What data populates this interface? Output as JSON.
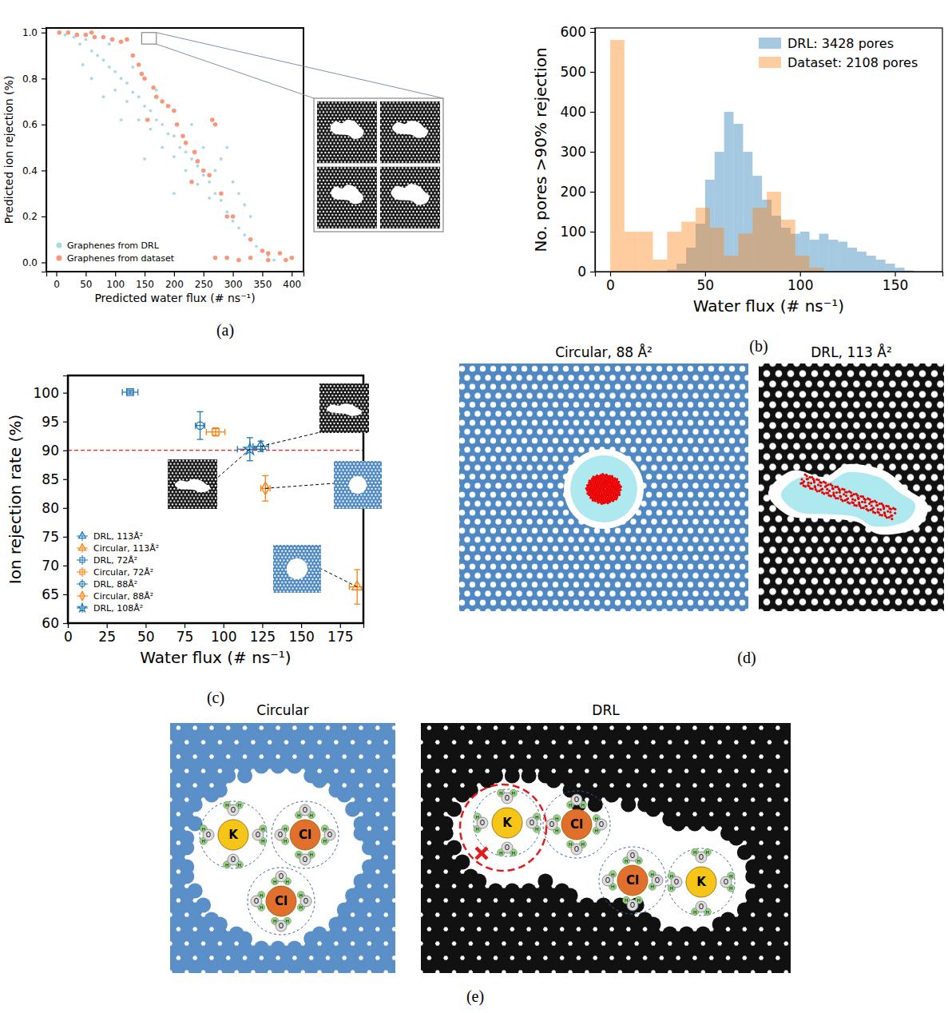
{
  "chart_data": [
    {
      "type": "scatter",
      "panel_label": "(a)",
      "x_label": "Predicted water flux (# ns⁻¹)",
      "y_label": "Predicted ion rejection (%)",
      "xlim": [
        -17,
        420
      ],
      "ylim": [
        -0.04,
        1.02
      ],
      "xticks": [
        0,
        50,
        100,
        150,
        200,
        250,
        300,
        350,
        400
      ],
      "yticks": [
        {
          "value": 0,
          "label": "0.0"
        },
        {
          "value": 0.2,
          "label": "0.2"
        },
        {
          "value": 0.4,
          "label": "0.4"
        },
        {
          "value": 0.6,
          "label": "0.6"
        },
        {
          "value": 0.8,
          "label": "0.8"
        },
        {
          "value": 1,
          "label": "1.0"
        }
      ],
      "legend": "lower left",
      "inset_region": {
        "x": [
          145,
          170
        ],
        "y": [
          0.95,
          1.0
        ]
      },
      "series": [
        {
          "name": "Graphenes from DRL",
          "color": "#a9d9e6",
          "marker": "circle",
          "x": [
            5,
            15,
            30,
            40,
            50,
            60,
            70,
            80,
            90,
            100,
            100,
            110,
            120,
            120,
            130,
            140,
            140,
            150,
            160,
            160,
            170,
            180,
            180,
            190,
            200,
            200,
            210,
            220,
            220,
            230,
            240,
            240,
            250,
            260,
            260,
            270,
            280,
            280,
            290,
            300,
            300,
            310,
            320,
            320,
            330,
            340,
            350,
            360,
            370,
            60,
            80,
            110,
            130,
            170,
            200,
            230,
            250,
            270,
            290,
            310,
            330,
            150,
            90,
            45
          ],
          "values": [
            1.0,
            0.99,
            0.98,
            0.95,
            0.97,
            0.92,
            0.9,
            0.88,
            0.85,
            0.83,
            0.75,
            0.8,
            0.78,
            0.7,
            0.74,
            0.72,
            0.62,
            0.68,
            0.66,
            0.58,
            0.62,
            0.6,
            0.5,
            0.56,
            0.55,
            0.46,
            0.5,
            0.48,
            0.4,
            0.45,
            0.42,
            0.34,
            0.38,
            0.35,
            0.28,
            0.3,
            0.27,
            0.45,
            0.22,
            0.18,
            0.35,
            0.15,
            0.12,
            0.25,
            0.1,
            0.07,
            0.05,
            0.03,
            0.01,
            0.8,
            0.72,
            0.62,
            0.85,
            0.75,
            0.3,
            0.6,
            0.5,
            0.4,
            0.5,
            0.3,
            0.2,
            0.45,
            0.95,
            0.86
          ]
        },
        {
          "name": "Graphenes from dataset",
          "color": "#f9977a",
          "marker": "circle",
          "x": [
            5,
            20,
            35,
            50,
            65,
            80,
            95,
            110,
            120,
            60,
            130,
            140,
            145,
            150,
            165,
            170,
            180,
            190,
            200,
            205,
            215,
            220,
            235,
            240,
            250,
            260,
            265,
            270,
            280,
            290,
            300,
            330,
            350,
            360,
            380,
            270,
            290,
            310,
            330,
            360,
            390,
            400,
            155,
            230
          ],
          "values": [
            1.0,
            1.0,
            0.99,
            0.99,
            0.98,
            0.98,
            0.97,
            0.96,
            0.97,
            1.0,
            0.9,
            0.86,
            0.82,
            0.8,
            0.76,
            0.72,
            0.7,
            0.68,
            0.66,
            0.6,
            0.55,
            0.52,
            0.48,
            0.44,
            0.4,
            0.38,
            0.62,
            0.6,
            0.3,
            0.2,
            0.2,
            0.1,
            0.05,
            0.04,
            0.04,
            0.02,
            0.02,
            0.01,
            0.02,
            0.01,
            0.01,
            0.02,
            0.62,
            0.35
          ]
        }
      ]
    },
    {
      "type": "histogram",
      "panel_label": "(b)",
      "x_label": "Water flux (# ns⁻¹)",
      "y_label": "No. pores >90% rejection",
      "xlim": [
        -8,
        175
      ],
      "ylim": [
        0,
        610
      ],
      "xticks": [
        0,
        50,
        100,
        150
      ],
      "yticks": [
        0,
        100,
        200,
        300,
        400,
        500,
        600
      ],
      "legend": "upper right",
      "series": [
        {
          "name": "DRL: 3428 pores",
          "color": "#1f77b4",
          "bins": [
            30,
            35,
            40,
            45,
            50,
            55,
            60,
            65,
            70,
            75,
            80,
            85,
            90,
            95,
            100,
            105,
            110,
            115,
            120,
            125,
            130,
            135,
            140,
            145,
            150,
            155,
            160
          ],
          "values": [
            5,
            20,
            60,
            120,
            230,
            300,
            400,
            370,
            300,
            240,
            180,
            140,
            110,
            95,
            100,
            80,
            95,
            80,
            75,
            60,
            50,
            40,
            30,
            20,
            10,
            3
          ]
        },
        {
          "name": "Dataset: 2108 pores",
          "color": "#ff7f0e",
          "bins": [
            0,
            7.5,
            15,
            22.5,
            30,
            37.5,
            45,
            52.5,
            60,
            67.5,
            75,
            82.5,
            90,
            97.5,
            105,
            112.5
          ],
          "values": [
            580,
            100,
            100,
            30,
            100,
            125,
            160,
            110,
            40,
            95,
            160,
            200,
            130,
            40,
            10
          ]
        }
      ]
    },
    {
      "type": "scatter",
      "panel_label": "(c)",
      "x_label": "Water flux (# ns⁻¹)",
      "y_label": "Ion rejection rate (%)",
      "xlim": [
        0,
        190
      ],
      "ylim": [
        60,
        103
      ],
      "xticks": [
        0,
        25,
        50,
        75,
        100,
        125,
        150,
        175
      ],
      "yticks": [
        60,
        65,
        70,
        75,
        80,
        85,
        90,
        95,
        100
      ],
      "legend": "lower left",
      "reference_y": 90,
      "series": [
        {
          "name": "DRL, 113Å²",
          "color": "#1f77b4",
          "marker": "triangle",
          "x": [
            124
          ],
          "values": [
            90.7
          ],
          "x_error": [
            5
          ],
          "y_error": [
            0.9
          ]
        },
        {
          "name": "Circular, 113Å²",
          "color": "#ff7f0e",
          "marker": "triangle",
          "x": [
            186
          ],
          "values": [
            66.3
          ],
          "x_error": [
            5
          ],
          "y_error": [
            3
          ]
        },
        {
          "name": "DRL, 72Å²",
          "color": "#1f77b4",
          "marker": "square",
          "x": [
            40
          ],
          "values": [
            100.1
          ],
          "x_error": [
            5
          ],
          "y_error": [
            0.3
          ]
        },
        {
          "name": "Circular, 72Å²",
          "color": "#ff7f0e",
          "marker": "square",
          "x": [
            95
          ],
          "values": [
            93.2
          ],
          "x_error": [
            6
          ],
          "y_error": [
            0.7
          ]
        },
        {
          "name": "DRL, 88Å²",
          "color": "#1f77b4",
          "marker": "circle",
          "x": [
            85
          ],
          "values": [
            94.3
          ],
          "x_error": [
            3
          ],
          "y_error": [
            2.4
          ]
        },
        {
          "name": "Circular, 88Å²",
          "color": "#ff7f0e",
          "marker": "diamond",
          "x": [
            127
          ],
          "values": [
            83.4
          ],
          "x_error": [
            3
          ],
          "y_error": [
            2.2
          ]
        },
        {
          "name": "DRL, 108Å²",
          "color": "#1f77b4",
          "marker": "star",
          "x": [
            117
          ],
          "values": [
            90.2
          ],
          "x_error": [
            8
          ],
          "y_error": [
            2.0
          ]
        }
      ]
    }
  ],
  "panels": {
    "d": {
      "panel_label": "(d)",
      "titles": [
        "Circular, 88 Å²",
        "DRL, 113 Å²"
      ]
    },
    "e": {
      "panel_label": "(e)",
      "titles": [
        "Circular",
        "DRL"
      ],
      "ions": {
        "potassium": "K",
        "chloride": "Cl"
      },
      "water_atoms": {
        "oxygen": "O",
        "hydrogen": "H"
      }
    }
  }
}
